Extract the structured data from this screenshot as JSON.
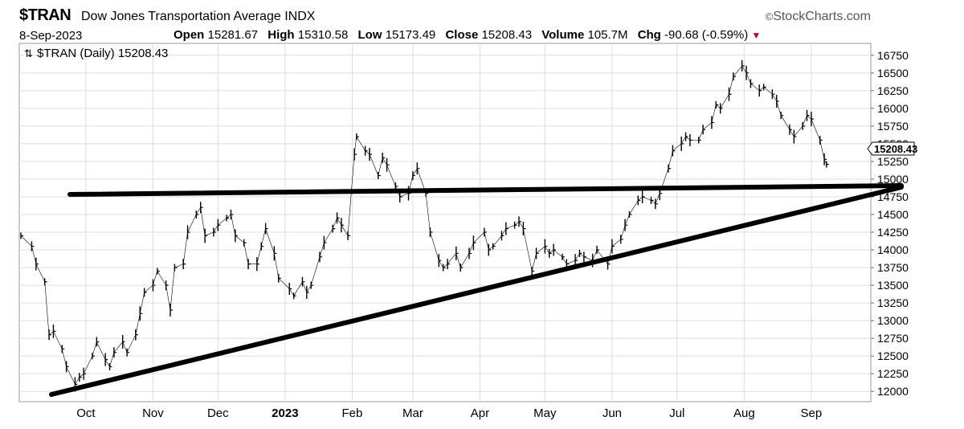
{
  "header": {
    "symbol": "$TRAN",
    "name": "Dow Jones Transportation Average",
    "exchange": "INDX",
    "brand": "StockCharts.com",
    "date": "8-Sep-2023",
    "open_label": "Open",
    "open": "15281.67",
    "high_label": "High",
    "high": "15310.58",
    "low_label": "Low",
    "low": "15173.49",
    "close_label": "Close",
    "close": "15208.43",
    "volume_label": "Volume",
    "volume": "105.7M",
    "chg_label": "Chg",
    "chg": "-90.68 (-0.59%)"
  },
  "chart_data": {
    "type": "line",
    "title": "$TRAN (Daily) 15208.43",
    "last_value_label": "15208.43",
    "ylim": [
      11900,
      16850
    ],
    "yticks": [
      12000,
      12250,
      12500,
      12750,
      13000,
      13250,
      13500,
      13750,
      14000,
      14250,
      14500,
      14750,
      15000,
      15250,
      15500,
      15750,
      16000,
      16250,
      16500,
      16750
    ],
    "x_labels": [
      {
        "label": "Oct",
        "date": "2022-10-01",
        "bold": false
      },
      {
        "label": "Nov",
        "date": "2022-11-01",
        "bold": false
      },
      {
        "label": "Dec",
        "date": "2022-12-01",
        "bold": false
      },
      {
        "label": "2023",
        "date": "2023-01-01",
        "bold": true
      },
      {
        "label": "Feb",
        "date": "2023-02-01",
        "bold": false
      },
      {
        "label": "Mar",
        "date": "2023-03-01",
        "bold": false
      },
      {
        "label": "Apr",
        "date": "2023-04-01",
        "bold": false
      },
      {
        "label": "May",
        "date": "2023-05-01",
        "bold": false
      },
      {
        "label": "Jun",
        "date": "2023-06-01",
        "bold": false
      },
      {
        "label": "Jul",
        "date": "2023-07-01",
        "bold": false
      },
      {
        "label": "Aug",
        "date": "2023-08-01",
        "bold": false
      },
      {
        "label": "Sep",
        "date": "2023-09-01",
        "bold": false
      }
    ],
    "date_range": [
      "2022-09-01",
      "2023-09-27"
    ],
    "series": [
      {
        "values": [
          [
            "2022-09-01",
            14200
          ],
          [
            "2022-09-06",
            14050
          ],
          [
            "2022-09-08",
            13800
          ],
          [
            "2022-09-12",
            13550
          ],
          [
            "2022-09-14",
            12800
          ],
          [
            "2022-09-16",
            12850
          ],
          [
            "2022-09-20",
            12600
          ],
          [
            "2022-09-22",
            12350
          ],
          [
            "2022-09-26",
            12100
          ],
          [
            "2022-09-28",
            12200
          ],
          [
            "2022-09-30",
            12250
          ],
          [
            "2022-10-04",
            12500
          ],
          [
            "2022-10-06",
            12700
          ],
          [
            "2022-10-10",
            12450
          ],
          [
            "2022-10-12",
            12350
          ],
          [
            "2022-10-14",
            12550
          ],
          [
            "2022-10-18",
            12700
          ],
          [
            "2022-10-20",
            12550
          ],
          [
            "2022-10-24",
            12800
          ],
          [
            "2022-10-26",
            13100
          ],
          [
            "2022-10-28",
            13400
          ],
          [
            "2022-11-01",
            13500
          ],
          [
            "2022-11-03",
            13700
          ],
          [
            "2022-11-07",
            13500
          ],
          [
            "2022-11-09",
            13150
          ],
          [
            "2022-11-11",
            13750
          ],
          [
            "2022-11-15",
            13800
          ],
          [
            "2022-11-17",
            14250
          ],
          [
            "2022-11-21",
            14500
          ],
          [
            "2022-11-23",
            14600
          ],
          [
            "2022-11-25",
            14200
          ],
          [
            "2022-11-29",
            14250
          ],
          [
            "2022-12-01",
            14350
          ],
          [
            "2022-12-05",
            14450
          ],
          [
            "2022-12-07",
            14500
          ],
          [
            "2022-12-09",
            14200
          ],
          [
            "2022-12-13",
            14100
          ],
          [
            "2022-12-15",
            13800
          ],
          [
            "2022-12-19",
            13800
          ],
          [
            "2022-12-21",
            14050
          ],
          [
            "2022-12-23",
            14300
          ],
          [
            "2022-12-27",
            13950
          ],
          [
            "2022-12-29",
            13600
          ],
          [
            "2023-01-03",
            13450
          ],
          [
            "2023-01-05",
            13350
          ],
          [
            "2023-01-09",
            13550
          ],
          [
            "2023-01-11",
            13400
          ],
          [
            "2023-01-13",
            13500
          ],
          [
            "2023-01-17",
            13900
          ],
          [
            "2023-01-19",
            14100
          ],
          [
            "2023-01-23",
            14300
          ],
          [
            "2023-01-25",
            14450
          ],
          [
            "2023-01-27",
            14350
          ],
          [
            "2023-01-30",
            14200
          ],
          [
            "2023-02-02",
            15350
          ],
          [
            "2023-02-03",
            15600
          ],
          [
            "2023-02-07",
            15400
          ],
          [
            "2023-02-09",
            15350
          ],
          [
            "2023-02-13",
            15050
          ],
          [
            "2023-02-15",
            15300
          ],
          [
            "2023-02-17",
            15200
          ],
          [
            "2023-02-21",
            14900
          ],
          [
            "2023-02-23",
            14750
          ],
          [
            "2023-02-27",
            14800
          ],
          [
            "2023-03-01",
            15050
          ],
          [
            "2023-03-03",
            15150
          ],
          [
            "2023-03-07",
            14800
          ],
          [
            "2023-03-09",
            14250
          ],
          [
            "2023-03-13",
            13850
          ],
          [
            "2023-03-15",
            13750
          ],
          [
            "2023-03-17",
            13800
          ],
          [
            "2023-03-21",
            13950
          ],
          [
            "2023-03-23",
            13750
          ],
          [
            "2023-03-27",
            13950
          ],
          [
            "2023-03-29",
            14100
          ],
          [
            "2023-04-03",
            14250
          ],
          [
            "2023-04-05",
            14000
          ],
          [
            "2023-04-07",
            14050
          ],
          [
            "2023-04-11",
            14200
          ],
          [
            "2023-04-13",
            14300
          ],
          [
            "2023-04-17",
            14350
          ],
          [
            "2023-04-19",
            14400
          ],
          [
            "2023-04-21",
            14300
          ],
          [
            "2023-04-25",
            13700
          ],
          [
            "2023-04-27",
            13950
          ],
          [
            "2023-05-01",
            14050
          ],
          [
            "2023-05-03",
            13950
          ],
          [
            "2023-05-05",
            14000
          ],
          [
            "2023-05-09",
            13900
          ],
          [
            "2023-05-11",
            13800
          ],
          [
            "2023-05-15",
            13850
          ],
          [
            "2023-05-17",
            13950
          ],
          [
            "2023-05-19",
            13900
          ],
          [
            "2023-05-23",
            13850
          ],
          [
            "2023-05-25",
            14000
          ],
          [
            "2023-05-30",
            13800
          ],
          [
            "2023-06-01",
            14050
          ],
          [
            "2023-06-05",
            14150
          ],
          [
            "2023-06-07",
            14350
          ],
          [
            "2023-06-09",
            14500
          ],
          [
            "2023-06-13",
            14700
          ],
          [
            "2023-06-15",
            14750
          ],
          [
            "2023-06-19",
            14700
          ],
          [
            "2023-06-21",
            14650
          ],
          [
            "2023-06-23",
            14800
          ],
          [
            "2023-06-27",
            15150
          ],
          [
            "2023-06-29",
            15400
          ],
          [
            "2023-07-03",
            15500
          ],
          [
            "2023-07-05",
            15600
          ],
          [
            "2023-07-07",
            15550
          ],
          [
            "2023-07-11",
            15550
          ],
          [
            "2023-07-13",
            15700
          ],
          [
            "2023-07-17",
            15800
          ],
          [
            "2023-07-19",
            16050
          ],
          [
            "2023-07-21",
            16000
          ],
          [
            "2023-07-25",
            16200
          ],
          [
            "2023-07-27",
            16450
          ],
          [
            "2023-07-31",
            16600
          ],
          [
            "2023-08-02",
            16500
          ],
          [
            "2023-08-04",
            16350
          ],
          [
            "2023-08-08",
            16250
          ],
          [
            "2023-08-10",
            16300
          ],
          [
            "2023-08-14",
            16200
          ],
          [
            "2023-08-16",
            16100
          ],
          [
            "2023-08-18",
            15900
          ],
          [
            "2023-08-22",
            15700
          ],
          [
            "2023-08-24",
            15600
          ],
          [
            "2023-08-28",
            15750
          ],
          [
            "2023-08-30",
            15900
          ],
          [
            "2023-09-01",
            15850
          ],
          [
            "2023-09-05",
            15550
          ],
          [
            "2023-09-07",
            15280
          ],
          [
            "2023-09-08",
            15208
          ]
        ]
      }
    ]
  },
  "colors": {
    "price": "#000000",
    "grid": "#dddddd",
    "trendline": "#000000",
    "border": "#999999",
    "arrow": "#c0003a"
  }
}
